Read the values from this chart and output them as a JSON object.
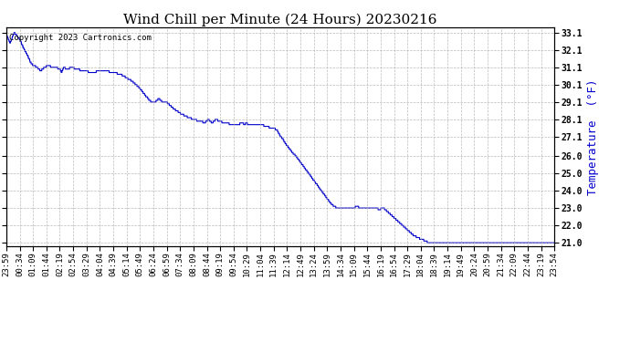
{
  "title": "Wind Chill per Minute (24 Hours) 20230216",
  "ylabel": "Temperature  (°F)",
  "copyright_text": "Copyright 2023 Cartronics.com",
  "line_color": "#0000CC",
  "bg_color": "#ffffff",
  "grid_color": "#aaaaaa",
  "ylim": [
    20.8,
    33.4
  ],
  "yticks": [
    21.0,
    22.0,
    23.0,
    24.0,
    25.0,
    26.0,
    27.1,
    28.1,
    29.1,
    30.1,
    31.1,
    32.1,
    33.1
  ],
  "xtick_labels": [
    "23:59",
    "00:34",
    "01:09",
    "01:44",
    "02:19",
    "02:54",
    "03:29",
    "04:04",
    "04:39",
    "05:14",
    "05:49",
    "06:24",
    "06:59",
    "07:34",
    "08:09",
    "08:44",
    "09:19",
    "09:54",
    "10:29",
    "11:04",
    "11:39",
    "12:14",
    "12:49",
    "13:24",
    "13:59",
    "14:34",
    "15:09",
    "15:44",
    "16:19",
    "16:54",
    "17:29",
    "18:04",
    "18:39",
    "19:14",
    "19:49",
    "20:24",
    "20:59",
    "21:34",
    "22:09",
    "22:44",
    "23:19",
    "23:54"
  ],
  "title_fontsize": 11,
  "ylabel_fontsize": 9,
  "tick_fontsize": 6.5,
  "copyright_fontsize": 6.5,
  "waypoints": [
    [
      0,
      33.0
    ],
    [
      5,
      32.7
    ],
    [
      10,
      32.5
    ],
    [
      15,
      32.8
    ],
    [
      20,
      33.1
    ],
    [
      25,
      33.0
    ],
    [
      35,
      32.7
    ],
    [
      45,
      32.2
    ],
    [
      55,
      31.8
    ],
    [
      65,
      31.3
    ],
    [
      80,
      31.1
    ],
    [
      90,
      30.9
    ],
    [
      100,
      31.1
    ],
    [
      110,
      31.2
    ],
    [
      120,
      31.1
    ],
    [
      130,
      31.1
    ],
    [
      140,
      31.0
    ],
    [
      145,
      30.8
    ],
    [
      150,
      31.1
    ],
    [
      160,
      31.0
    ],
    [
      170,
      31.1
    ],
    [
      185,
      31.0
    ],
    [
      200,
      30.9
    ],
    [
      210,
      30.9
    ],
    [
      220,
      30.8
    ],
    [
      230,
      30.8
    ],
    [
      240,
      30.9
    ],
    [
      260,
      30.9
    ],
    [
      280,
      30.8
    ],
    [
      300,
      30.7
    ],
    [
      330,
      30.3
    ],
    [
      350,
      29.9
    ],
    [
      360,
      29.6
    ],
    [
      380,
      29.1
    ],
    [
      390,
      29.1
    ],
    [
      400,
      29.3
    ],
    [
      410,
      29.1
    ],
    [
      420,
      29.1
    ],
    [
      430,
      28.9
    ],
    [
      440,
      28.7
    ],
    [
      460,
      28.4
    ],
    [
      480,
      28.2
    ],
    [
      490,
      28.1
    ],
    [
      510,
      28.0
    ],
    [
      520,
      27.9
    ],
    [
      530,
      28.1
    ],
    [
      540,
      27.9
    ],
    [
      550,
      28.1
    ],
    [
      560,
      28.0
    ],
    [
      570,
      27.9
    ],
    [
      580,
      27.9
    ],
    [
      590,
      27.8
    ],
    [
      600,
      27.8
    ],
    [
      610,
      27.8
    ],
    [
      615,
      27.9
    ],
    [
      620,
      27.9
    ],
    [
      625,
      27.8
    ],
    [
      630,
      27.9
    ],
    [
      635,
      27.8
    ],
    [
      640,
      27.8
    ],
    [
      650,
      27.8
    ],
    [
      660,
      27.8
    ],
    [
      670,
      27.8
    ],
    [
      680,
      27.7
    ],
    [
      700,
      27.6
    ],
    [
      710,
      27.5
    ],
    [
      720,
      27.1
    ],
    [
      725,
      27.0
    ],
    [
      730,
      26.8
    ],
    [
      740,
      26.5
    ],
    [
      750,
      26.2
    ],
    [
      760,
      26.0
    ],
    [
      770,
      25.7
    ],
    [
      780,
      25.4
    ],
    [
      790,
      25.1
    ],
    [
      800,
      24.8
    ],
    [
      810,
      24.5
    ],
    [
      820,
      24.2
    ],
    [
      830,
      23.9
    ],
    [
      840,
      23.6
    ],
    [
      850,
      23.3
    ],
    [
      860,
      23.1
    ],
    [
      870,
      23.0
    ],
    [
      880,
      23.0
    ],
    [
      900,
      23.0
    ],
    [
      910,
      23.0
    ],
    [
      920,
      23.1
    ],
    [
      930,
      23.0
    ],
    [
      940,
      23.0
    ],
    [
      950,
      23.0
    ],
    [
      960,
      23.0
    ],
    [
      970,
      23.0
    ],
    [
      980,
      22.9
    ],
    [
      985,
      23.0
    ],
    [
      990,
      23.0
    ],
    [
      1000,
      22.8
    ],
    [
      1010,
      22.6
    ],
    [
      1020,
      22.4
    ],
    [
      1030,
      22.2
    ],
    [
      1040,
      22.0
    ],
    [
      1050,
      21.8
    ],
    [
      1060,
      21.6
    ],
    [
      1070,
      21.4
    ],
    [
      1080,
      21.3
    ],
    [
      1090,
      21.2
    ],
    [
      1100,
      21.1
    ],
    [
      1110,
      21.0
    ],
    [
      1120,
      21.0
    ],
    [
      1150,
      21.0
    ],
    [
      1200,
      21.0
    ],
    [
      1250,
      21.0
    ],
    [
      1300,
      21.0
    ],
    [
      1350,
      21.0
    ],
    [
      1439,
      21.0
    ]
  ]
}
